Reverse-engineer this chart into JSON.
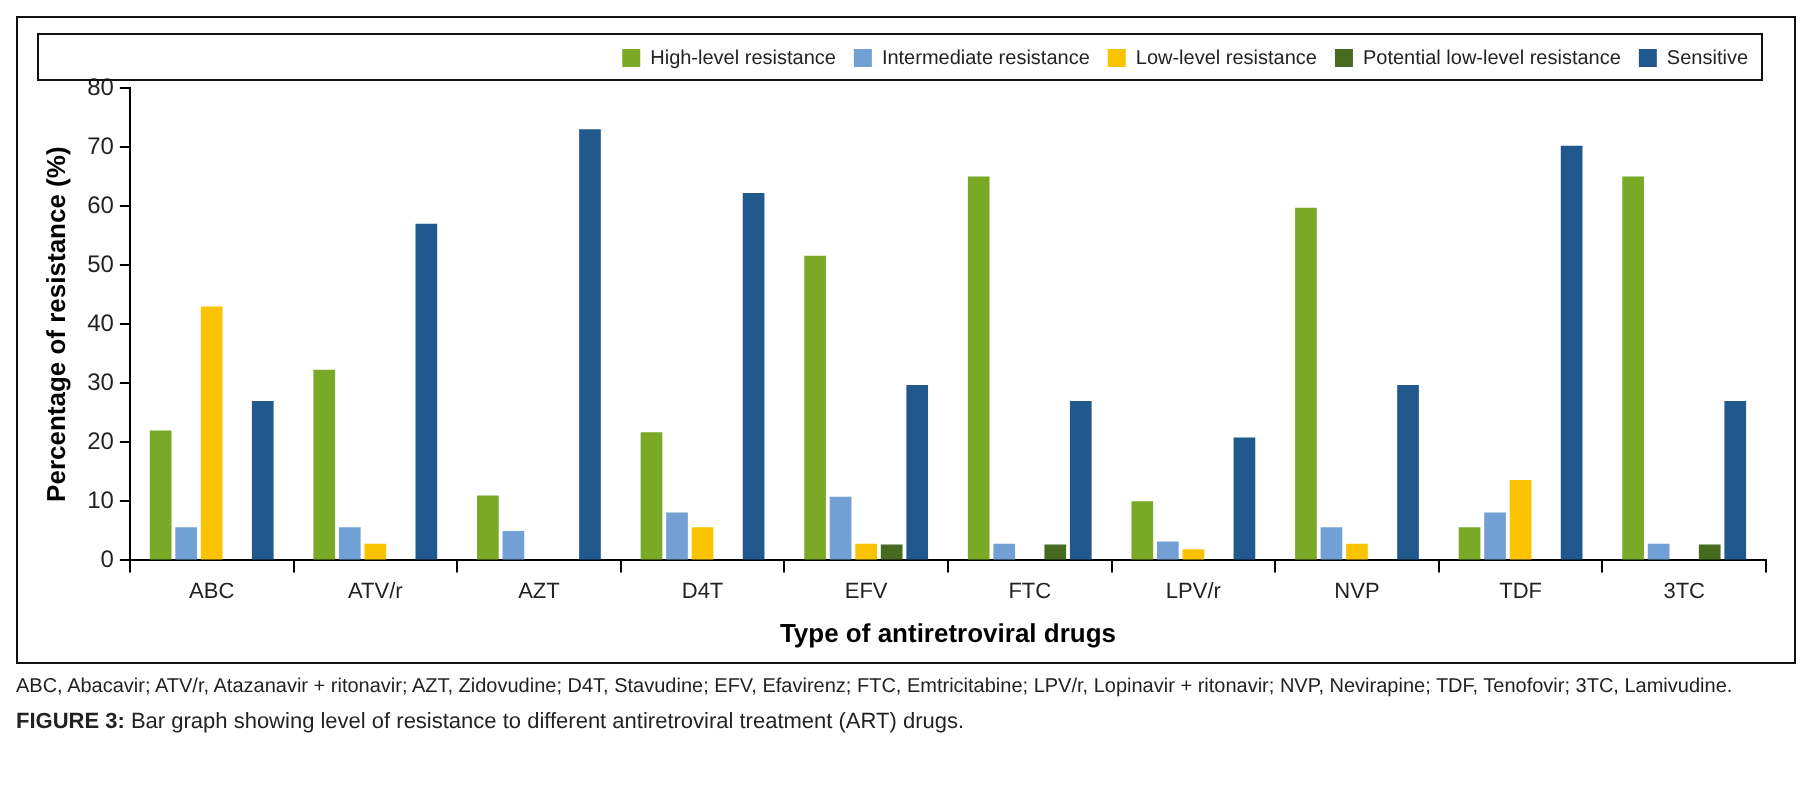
{
  "chart_data": {
    "type": "bar",
    "xlabel": "Type of antiretroviral drugs",
    "ylabel": "Percentage of resistance (%)",
    "categories": [
      "ABC",
      "ATV/r",
      "AZT",
      "D4T",
      "EFV",
      "FTC",
      "LPV/r",
      "NVP",
      "TDF",
      "3TC"
    ],
    "series": [
      {
        "name": "High-level resistance",
        "color": "#7aa928",
        "values": [
          22,
          32.3,
          11,
          21.7,
          51.6,
          65,
          10,
          59.7,
          5.6,
          65
        ]
      },
      {
        "name": "Intermediate resistance",
        "color": "#72a0d4",
        "values": [
          5.6,
          5.6,
          5,
          8.1,
          10.8,
          2.8,
          3.2,
          5.6,
          8.1,
          2.8
        ]
      },
      {
        "name": "Low-level resistance",
        "color": "#f9c300",
        "values": [
          43,
          2.8,
          0,
          5.6,
          2.8,
          0,
          1.9,
          2.8,
          13.6,
          0
        ]
      },
      {
        "name": "Potential low-level resistance",
        "color": "#466a20",
        "values": [
          0,
          0,
          0,
          0,
          2.7,
          2.7,
          0,
          0,
          0,
          2.7
        ]
      },
      {
        "name": "Sensitive",
        "color": "#21598f",
        "values": [
          27,
          57,
          73,
          62.2,
          29.7,
          27,
          20.8,
          29.7,
          70.2,
          27
        ]
      }
    ],
    "ylim": [
      0,
      80
    ],
    "yticks": [
      0,
      10,
      20,
      30,
      40,
      50,
      60,
      70,
      80
    ],
    "grid": false,
    "legend": "top right",
    "annotations": [
      "ABC, Abacavir; ATV/r, Atazanavir + ritonavir; AZT, Zidovudine; D4T, Stavudine; EFV, Efavirenz; FTC, Emtricitabine; LPV/r, Lopinavir + ritonavir; NVP, Nevirapine; TDF, Tenofovir; 3TC, Lamivudine.",
      "FIGURE 3: Bar graph showing level of resistance to different antiretroviral treatment (ART) drugs."
    ]
  }
}
